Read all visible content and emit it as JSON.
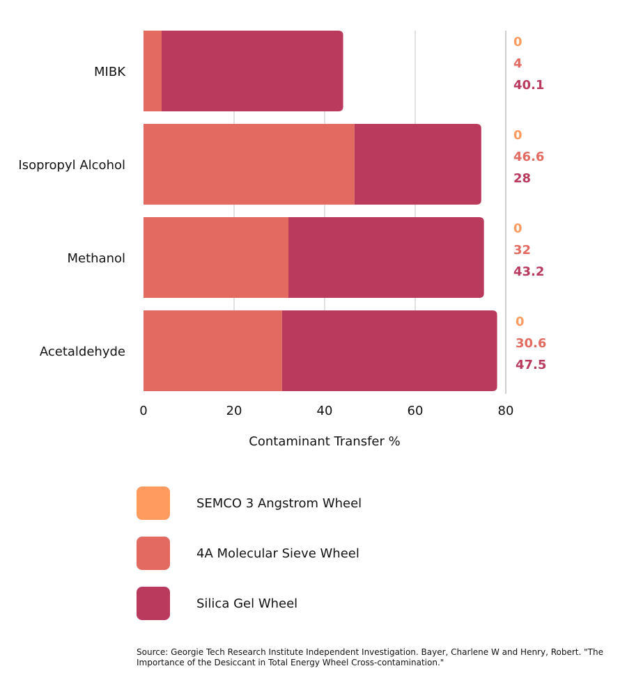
{
  "chart_data": {
    "type": "bar",
    "orientation": "horizontal",
    "stacked": true,
    "categories": [
      "MIBK",
      "Isopropyl Alcohol",
      "Methanol",
      "Acetaldehyde"
    ],
    "series": [
      {
        "name": "SEMCO 3 Angstrom Wheel",
        "color": "#FF9B5E",
        "values": [
          0,
          0,
          0,
          0
        ]
      },
      {
        "name": "4A Molecular Sieve Wheel",
        "color": "#E36A60",
        "values": [
          4,
          46.6,
          32,
          30.6
        ]
      },
      {
        "name": "Silica Gel Wheel",
        "color": "#BA3A5E",
        "values": [
          40.1,
          28,
          43.2,
          47.5
        ]
      }
    ],
    "xlabel": "Contaminant Transfer %",
    "ylabel": "",
    "xlim": [
      0,
      80
    ],
    "xticks": [
      0,
      20,
      40,
      60,
      80
    ],
    "grid": true,
    "legend_position": "bottom"
  },
  "source": "Source: Georgie Tech Research Institute Independent Investigation. Bayer, Charlene W and Henry, Robert. \"The Importance of the Desiccant in Total Energy Wheel Cross-contamination.\""
}
